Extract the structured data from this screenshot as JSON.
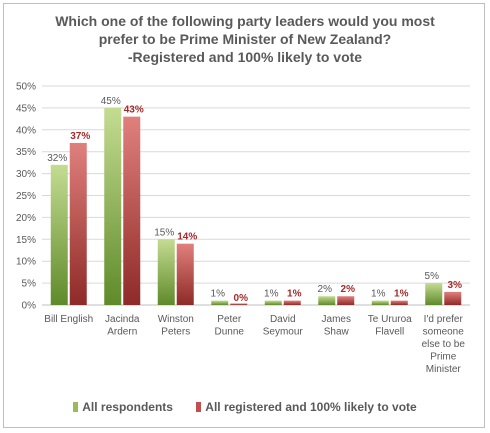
{
  "chart_data": {
    "type": "bar",
    "title_lines": [
      "Which one of the following party leaders would you most",
      "prefer to be Prime Minister of New Zealand?",
      "-Registered and 100% likely to vote"
    ],
    "categories": [
      [
        "Bill English"
      ],
      [
        "Jacinda",
        "Ardern"
      ],
      [
        "Winston",
        "Peters"
      ],
      [
        "Peter",
        "Dunne"
      ],
      [
        "David",
        "Seymour"
      ],
      [
        "James",
        "Shaw"
      ],
      [
        "Te Ururoa",
        "Flavell"
      ],
      [
        "I'd prefer",
        "someone",
        "else to be",
        "Prime",
        "Minister"
      ]
    ],
    "series": [
      {
        "name": "All respondents",
        "values": [
          32,
          45,
          15,
          1,
          1,
          2,
          1,
          5
        ],
        "labels": [
          "32%",
          "45%",
          "15%",
          "1%",
          "1%",
          "2%",
          "1%",
          "5%"
        ],
        "color": "#9bbb59"
      },
      {
        "name": "All registered and 100% likely to vote",
        "values": [
          37,
          43,
          14,
          0,
          1,
          2,
          1,
          3
        ],
        "labels": [
          "37%",
          "43%",
          "14%",
          "0%",
          "1%",
          "2%",
          "1%",
          "3%"
        ],
        "color": "#c0504d"
      }
    ],
    "yticks": [
      "0%",
      "5%",
      "10%",
      "15%",
      "20%",
      "25%",
      "30%",
      "35%",
      "40%",
      "45%",
      "50%"
    ],
    "ylim": [
      0,
      50
    ],
    "grid": true,
    "legend_position": "bottom"
  }
}
